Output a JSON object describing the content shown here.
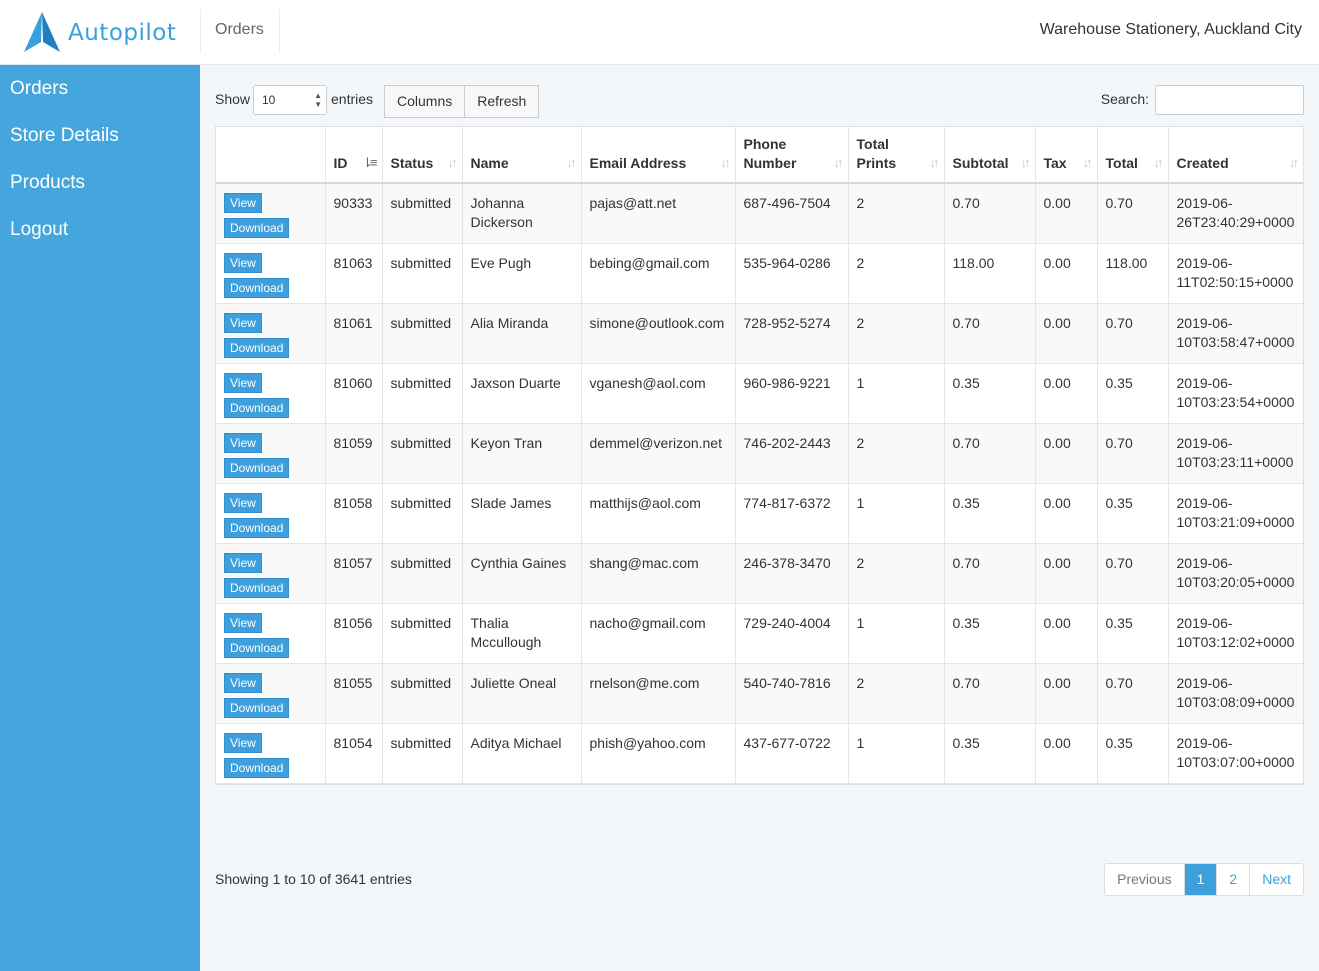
{
  "app": {
    "name": "Autopilot"
  },
  "header": {
    "title": "Orders",
    "store": "Warehouse Stationery, Auckland City"
  },
  "sidebar": {
    "items": [
      {
        "label": "Orders"
      },
      {
        "label": "Store Details"
      },
      {
        "label": "Products"
      },
      {
        "label": "Logout"
      }
    ]
  },
  "toolbar": {
    "show_label": "Show",
    "entries_value": "10",
    "entries_label": "entries",
    "columns_label": "Columns",
    "refresh_label": "Refresh",
    "search_label": "Search:",
    "search_value": ""
  },
  "table": {
    "columns": [
      "",
      "ID",
      "Status",
      "Name",
      "Email Address",
      "Phone Number",
      "Total Prints",
      "Subtotal",
      "Tax",
      "Total",
      "Created"
    ],
    "view_label": "View",
    "download_label": "Download",
    "rows": [
      {
        "id": "90333",
        "status": "submitted",
        "name": "Johanna Dickerson",
        "email": "pajas@att.net",
        "phone": "687-496-7504",
        "prints": "2",
        "subtotal": "0.70",
        "tax": "0.00",
        "total": "0.70",
        "created": "2019-06-26T23:40:29+0000"
      },
      {
        "id": "81063",
        "status": "submitted",
        "name": "Eve Pugh",
        "email": "bebing@gmail.com",
        "phone": "535-964-0286",
        "prints": "2",
        "subtotal": "118.00",
        "tax": "0.00",
        "total": "118.00",
        "created": "2019-06-11T02:50:15+0000"
      },
      {
        "id": "81061",
        "status": "submitted",
        "name": "Alia Miranda",
        "email": "simone@outlook.com",
        "phone": "728-952-5274",
        "prints": "2",
        "subtotal": "0.70",
        "tax": "0.00",
        "total": "0.70",
        "created": "2019-06-10T03:58:47+0000"
      },
      {
        "id": "81060",
        "status": "submitted",
        "name": "Jaxson Duarte",
        "email": "vganesh@aol.com",
        "phone": "960-986-9221",
        "prints": "1",
        "subtotal": "0.35",
        "tax": "0.00",
        "total": "0.35",
        "created": "2019-06-10T03:23:54+0000"
      },
      {
        "id": "81059",
        "status": "submitted",
        "name": "Keyon Tran",
        "email": "demmel@verizon.net",
        "phone": "746-202-2443",
        "prints": "2",
        "subtotal": "0.70",
        "tax": "0.00",
        "total": "0.70",
        "created": "2019-06-10T03:23:11+0000"
      },
      {
        "id": "81058",
        "status": "submitted",
        "name": "Slade James",
        "email": "matthijs@aol.com",
        "phone": "774-817-6372",
        "prints": "1",
        "subtotal": "0.35",
        "tax": "0.00",
        "total": "0.35",
        "created": "2019-06-10T03:21:09+0000"
      },
      {
        "id": "81057",
        "status": "submitted",
        "name": "Cynthia Gaines",
        "email": "shang@mac.com",
        "phone": "246-378-3470",
        "prints": "2",
        "subtotal": "0.70",
        "tax": "0.00",
        "total": "0.70",
        "created": "2019-06-10T03:20:05+0000"
      },
      {
        "id": "81056",
        "status": "submitted",
        "name": "Thalia Mccullough",
        "email": "nacho@gmail.com",
        "phone": "729-240-4004",
        "prints": "1",
        "subtotal": "0.35",
        "tax": "0.00",
        "total": "0.35",
        "created": "2019-06-10T03:12:02+0000"
      },
      {
        "id": "81055",
        "status": "submitted",
        "name": "Juliette Oneal",
        "email": "rnelson@me.com",
        "phone": "540-740-7816",
        "prints": "2",
        "subtotal": "0.70",
        "tax": "0.00",
        "total": "0.70",
        "created": "2019-06-10T03:08:09+0000"
      },
      {
        "id": "81054",
        "status": "submitted",
        "name": "Aditya Michael",
        "email": "phish@yahoo.com",
        "phone": "437-677-0722",
        "prints": "1",
        "subtotal": "0.35",
        "tax": "0.00",
        "total": "0.35",
        "created": "2019-06-10T03:07:00+0000"
      }
    ]
  },
  "footer": {
    "info": "Showing 1 to 10 of 3641 entries",
    "pagination": {
      "previous": "Previous",
      "pages": [
        "1",
        "2"
      ],
      "next": "Next"
    }
  },
  "colors": {
    "sidebar": "#45a5dd",
    "accent": "#3d9fdc"
  }
}
